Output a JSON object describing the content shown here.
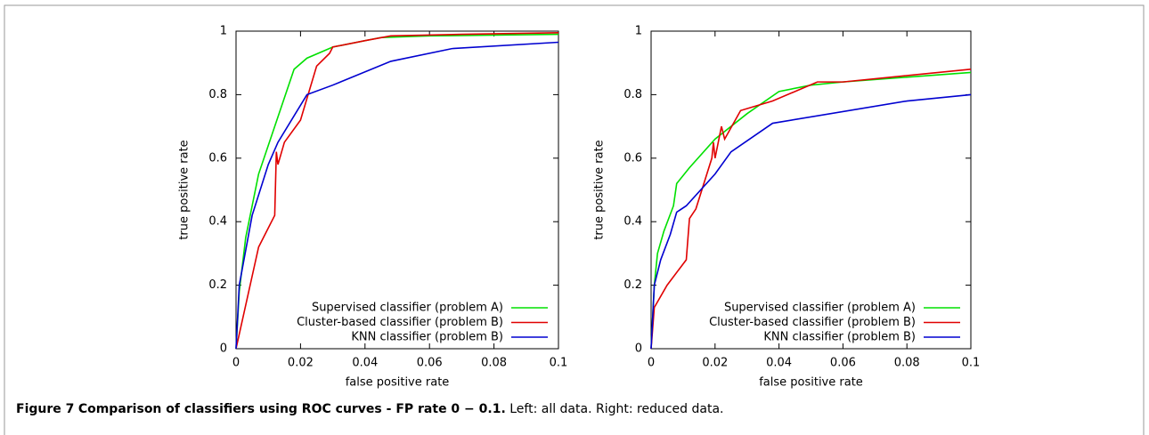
{
  "chart_data": [
    {
      "type": "line",
      "xlabel": "false positive rate",
      "ylabel": "true positive rate",
      "xlim": [
        0,
        0.1
      ],
      "ylim": [
        0,
        1
      ],
      "xticks": [
        0,
        0.02,
        0.04,
        0.06,
        0.08,
        0.1
      ],
      "yticks": [
        0,
        0.2,
        0.4,
        0.6,
        0.8,
        1
      ],
      "legend": "lower right",
      "series": [
        {
          "name": "Supervised classifier (problem A)",
          "color": "#00e000",
          "x": [
            0,
            0.001,
            0.003,
            0.007,
            0.012,
            0.018,
            0.022,
            0.03,
            0.045,
            0.06,
            0.1
          ],
          "values": [
            0,
            0.18,
            0.35,
            0.55,
            0.7,
            0.88,
            0.915,
            0.95,
            0.98,
            0.985,
            0.99
          ]
        },
        {
          "name": "Cluster-based classifier (problem B)",
          "color": "#e00000",
          "x": [
            0,
            0.007,
            0.012,
            0.0125,
            0.013,
            0.015,
            0.02,
            0.025,
            0.029,
            0.03,
            0.04,
            0.048,
            0.07,
            0.1
          ],
          "values": [
            0,
            0.32,
            0.42,
            0.62,
            0.58,
            0.65,
            0.72,
            0.89,
            0.93,
            0.95,
            0.97,
            0.985,
            0.99,
            0.995
          ]
        },
        {
          "name": "KNN classifier (problem B)",
          "color": "#0000d0",
          "x": [
            0,
            0.001,
            0.005,
            0.01,
            0.013,
            0.022,
            0.03,
            0.048,
            0.067,
            0.1
          ],
          "values": [
            0,
            0.2,
            0.42,
            0.58,
            0.65,
            0.8,
            0.83,
            0.905,
            0.945,
            0.965
          ]
        }
      ]
    },
    {
      "type": "line",
      "xlabel": "false positive rate",
      "ylabel": "true positive rate",
      "xlim": [
        0,
        0.1
      ],
      "ylim": [
        0,
        1
      ],
      "xticks": [
        0,
        0.02,
        0.04,
        0.06,
        0.08,
        0.1
      ],
      "yticks": [
        0,
        0.2,
        0.4,
        0.6,
        0.8,
        1
      ],
      "legend": "lower right",
      "series": [
        {
          "name": "Supervised classifier (problem A)",
          "color": "#00e000",
          "x": [
            0,
            0.001,
            0.002,
            0.004,
            0.007,
            0.008,
            0.012,
            0.02,
            0.03,
            0.04,
            0.05,
            0.06,
            0.1
          ],
          "values": [
            0,
            0.2,
            0.3,
            0.37,
            0.45,
            0.52,
            0.57,
            0.66,
            0.74,
            0.81,
            0.83,
            0.84,
            0.87
          ]
        },
        {
          "name": "Cluster-based classifier (problem B)",
          "color": "#e00000",
          "x": [
            0,
            0.001,
            0.005,
            0.011,
            0.012,
            0.014,
            0.019,
            0.0195,
            0.02,
            0.022,
            0.023,
            0.028,
            0.038,
            0.052,
            0.06,
            0.1
          ],
          "values": [
            0,
            0.13,
            0.2,
            0.28,
            0.41,
            0.44,
            0.6,
            0.65,
            0.6,
            0.7,
            0.66,
            0.75,
            0.78,
            0.84,
            0.84,
            0.88
          ]
        },
        {
          "name": "KNN classifier (problem B)",
          "color": "#0000d0",
          "x": [
            0,
            0.001,
            0.003,
            0.006,
            0.008,
            0.011,
            0.02,
            0.025,
            0.038,
            0.08,
            0.1
          ],
          "values": [
            0,
            0.2,
            0.28,
            0.36,
            0.43,
            0.45,
            0.55,
            0.62,
            0.71,
            0.78,
            0.8
          ]
        }
      ]
    }
  ],
  "caption": {
    "label": "Figure 7",
    "title": "Comparison of classifiers using ROC curves - FP rate 0 − 0.1.",
    "text": "Left: all data. Right: reduced data."
  }
}
